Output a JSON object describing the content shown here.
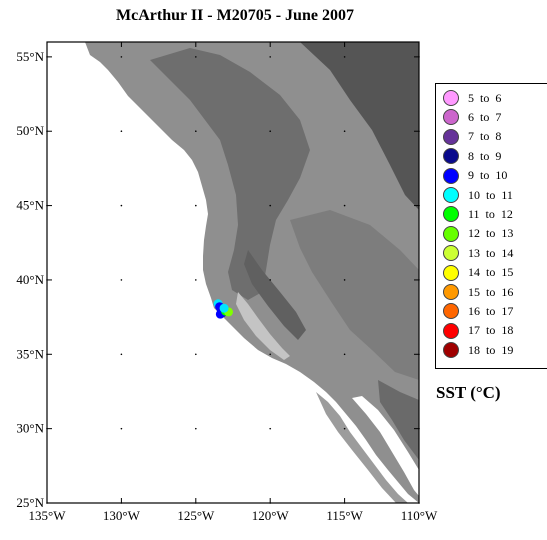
{
  "title": "McArthur II - M20705 - June 2007",
  "map": {
    "lat_range": [
      25,
      56
    ],
    "lon_range": [
      -135,
      -110
    ],
    "lat_ticks": [
      {
        "value": 55,
        "label": "55°N"
      },
      {
        "value": 50,
        "label": "50°N"
      },
      {
        "value": 45,
        "label": "45°N"
      },
      {
        "value": 40,
        "label": "40°N"
      },
      {
        "value": 35,
        "label": "35°N"
      },
      {
        "value": 30,
        "label": "30°N"
      },
      {
        "value": 25,
        "label": "25°N"
      }
    ],
    "lon_ticks": [
      {
        "value": -135,
        "label": "135°W"
      },
      {
        "value": -130,
        "label": "130°W"
      },
      {
        "value": -125,
        "label": "125°W"
      },
      {
        "value": -120,
        "label": "120°W"
      },
      {
        "value": -115,
        "label": "115°W"
      },
      {
        "value": -110,
        "label": "110°W"
      }
    ],
    "ocean_color": "#ffffff",
    "land_color": "#8c8c8c",
    "track_points": [
      {
        "lon": -123.5,
        "lat": 38.4,
        "color": "#00e5ff"
      },
      {
        "lon": -123.4,
        "lat": 38.2,
        "color": "#0000ff"
      },
      {
        "lon": -123.3,
        "lat": 38.0,
        "color": "#0000ff"
      },
      {
        "lon": -123.2,
        "lat": 37.8,
        "color": "#0a0a8c"
      },
      {
        "lon": -123.35,
        "lat": 37.7,
        "color": "#0000ff"
      },
      {
        "lon": -123.0,
        "lat": 37.9,
        "color": "#00ff00"
      },
      {
        "lon": -122.8,
        "lat": 37.85,
        "color": "#80ff00"
      },
      {
        "lon": -123.1,
        "lat": 38.1,
        "color": "#00e5ff"
      }
    ]
  },
  "legend": {
    "items": [
      {
        "label": "5  to  6",
        "color": "#ff99ff"
      },
      {
        "label": "6  to  7",
        "color": "#cc66cc"
      },
      {
        "label": "7  to  8",
        "color": "#663399"
      },
      {
        "label": "8  to  9",
        "color": "#0a0a8c"
      },
      {
        "label": "9  to  10",
        "color": "#0000ff"
      },
      {
        "label": "10  to  11",
        "color": "#00ffff"
      },
      {
        "label": "11  to  12",
        "color": "#00ff00"
      },
      {
        "label": "12  to  13",
        "color": "#66ff00"
      },
      {
        "label": "13  to  14",
        "color": "#ccff33"
      },
      {
        "label": "14  to  15",
        "color": "#ffff00"
      },
      {
        "label": "15  to  16",
        "color": "#ff9900"
      },
      {
        "label": "16  to  17",
        "color": "#ff6600"
      },
      {
        "label": "17  to  18",
        "color": "#ff0000"
      },
      {
        "label": "18  to  19",
        "color": "#a00000"
      }
    ],
    "unit_label": "SST (°C)"
  }
}
